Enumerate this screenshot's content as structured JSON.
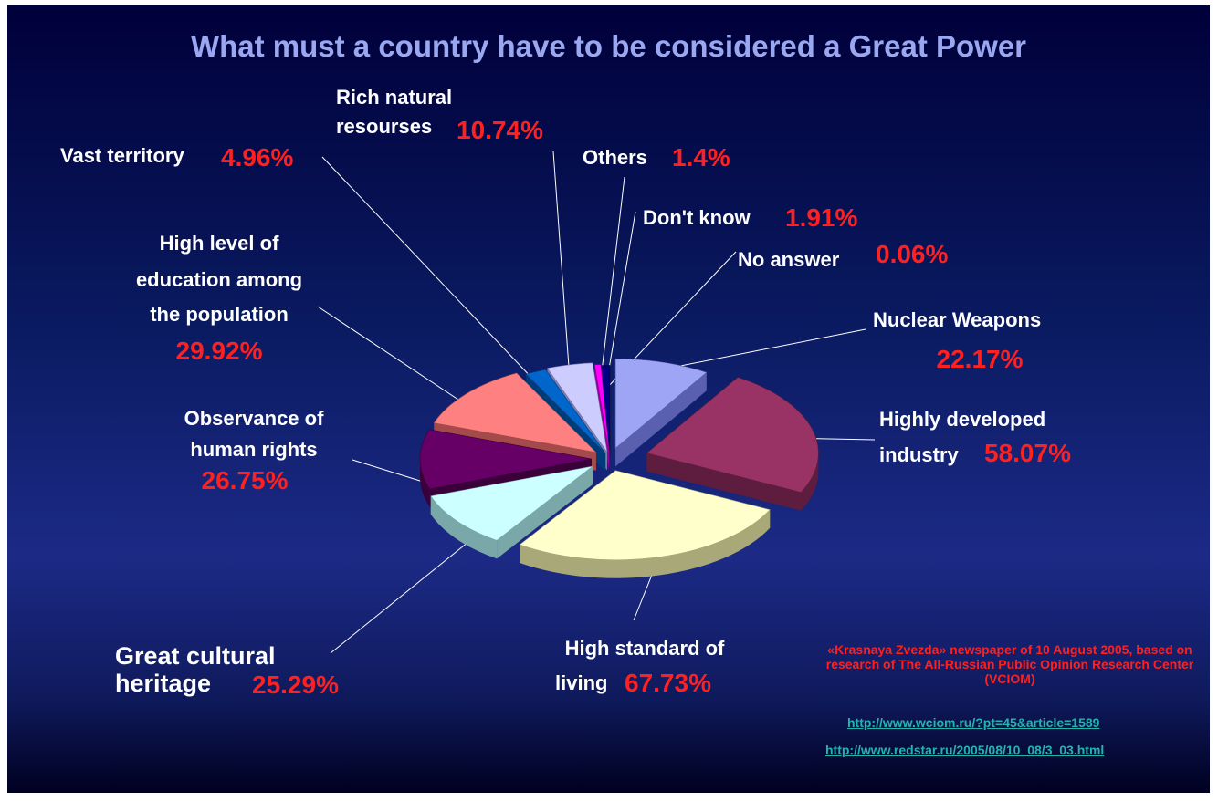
{
  "chart_data": {
    "type": "pie",
    "title": "What must a country have to be considered a Great Power",
    "slices": [
      {
        "label": "Nuclear Weapons",
        "value": 22.17,
        "value_label": "22.17%",
        "color": "#9ea5f5",
        "side": "#5a5fb0"
      },
      {
        "label": "Highly developed industry",
        "value": 58.07,
        "value_label": "58.07%",
        "color": "#993366",
        "side": "#5e1d3e"
      },
      {
        "label": "High standard of living",
        "value": 67.73,
        "value_label": "67.73%",
        "color": "#ffffcc",
        "side": "#a8a878"
      },
      {
        "label": "Great cultural heritage",
        "value": 25.29,
        "value_label": "25.29%",
        "color": "#ccffff",
        "side": "#7aa8a8"
      },
      {
        "label": "Observance of human rights",
        "value": 26.75,
        "value_label": "26.75%",
        "color": "#660066",
        "side": "#3a003a"
      },
      {
        "label": "High level of education among the population",
        "value": 29.92,
        "value_label": "29.92%",
        "color": "#ff8080",
        "side": "#a44a4a"
      },
      {
        "label": "Vast territory",
        "value": 4.96,
        "value_label": "4.96%",
        "color": "#0066cc",
        "side": "#003b7a"
      },
      {
        "label": "Rich natural resourses",
        "value": 10.74,
        "value_label": "10.74%",
        "color": "#ccccff",
        "side": "#7a7ab0"
      },
      {
        "label": "Others",
        "value": 1.4,
        "value_label": "1.4%",
        "color": "#ff00ff",
        "side": "#990099"
      },
      {
        "label": "Don't know",
        "value": 1.91,
        "value_label": "1.91%",
        "color": "#000080",
        "side": "#000050"
      },
      {
        "label": "No answer",
        "value": 0.06,
        "value_label": "0.06%",
        "color": "#333333",
        "side": "#111111"
      }
    ],
    "legend": "none"
  },
  "source": {
    "text": "«Krasnaya Zvezda» newspaper of 10 August 2005, based on research of The All-Russian Public Opinion Research Center (VCIOM)",
    "link1": "http://www.wciom.ru/?pt=45&article=1589",
    "link2": "http://www.redstar.ru/2005/08/10_08/3_03.html"
  },
  "colors": {
    "title": "#9aa8f2",
    "label": "#ffffff",
    "value": "#ff2020",
    "link": "#22b5b0"
  }
}
